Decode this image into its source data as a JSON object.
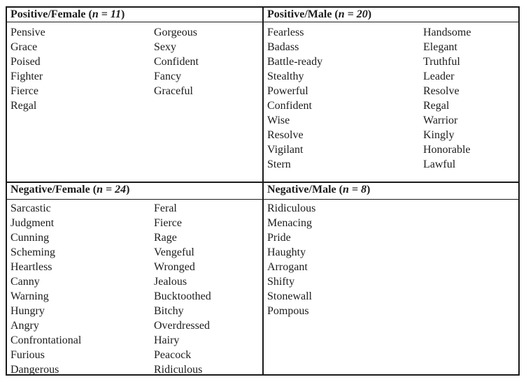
{
  "colors": {
    "border": "#1a1a1a",
    "text": "#1c1c1c",
    "background": "#ffffff"
  },
  "table": {
    "quadrants": [
      {
        "id": "positive-female",
        "header": {
          "prefix": "Positive/Female (",
          "stat": "n = 11",
          "suffix": ")"
        },
        "col1": [
          "Pensive",
          "Grace",
          "Poised",
          "Fighter",
          "Fierce",
          "Regal"
        ],
        "col2": [
          "Gorgeous",
          "Sexy",
          "Confident",
          "Fancy",
          "Graceful"
        ]
      },
      {
        "id": "positive-male",
        "header": {
          "prefix": "Positive/Male (",
          "stat": "n = 20",
          "suffix": ")"
        },
        "col1": [
          "Fearless",
          "Badass",
          "Battle-ready",
          "Stealthy",
          "Powerful",
          "Confident",
          "Wise",
          "Resolve",
          "Vigilant",
          "Stern"
        ],
        "col2": [
          "Handsome",
          "Elegant",
          "Truthful",
          "Leader",
          "Resolve",
          "Regal",
          "Warrior",
          "Kingly",
          "Honorable",
          "Lawful"
        ]
      },
      {
        "id": "negative-female",
        "header": {
          "prefix": "Negative/Female (",
          "stat": "n = 24",
          "suffix": ")"
        },
        "col1": [
          "Sarcastic",
          "Judgment",
          "Cunning",
          "Scheming",
          "Heartless",
          "Canny",
          "Warning",
          "Hungry",
          "Angry",
          "Confrontational",
          "Furious",
          "Dangerous"
        ],
        "col2": [
          "Feral",
          "Fierce",
          "Rage",
          "Vengeful",
          "Wronged",
          "Jealous",
          "Bucktoothed",
          "Bitchy",
          "Overdressed",
          "Hairy",
          "Peacock",
          "Ridiculous"
        ]
      },
      {
        "id": "negative-male",
        "header": {
          "prefix": "Negative/Male (",
          "stat": "n = 8",
          "suffix": ")"
        },
        "col1": [
          "Ridiculous",
          "Menacing",
          "Pride",
          "Haughty",
          "Arrogant",
          "Shifty",
          "Stonewall",
          "Pompous"
        ],
        "col2": []
      }
    ]
  }
}
